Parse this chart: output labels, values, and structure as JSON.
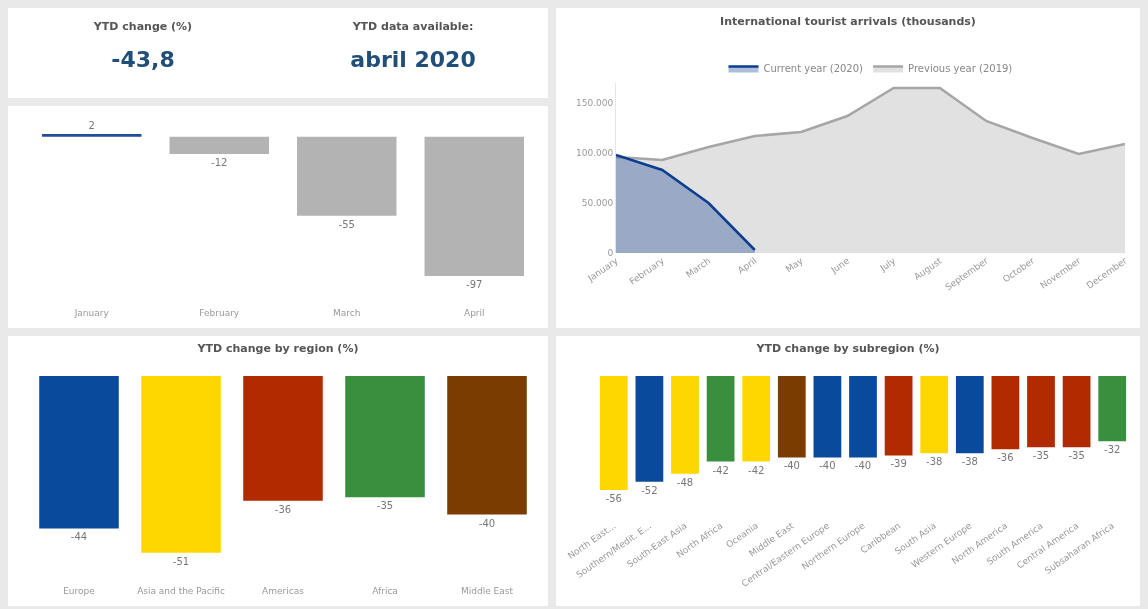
{
  "chart_data": [
    {
      "type": "other",
      "title": "YTD change (%)",
      "annotations": [
        "-43,8"
      ]
    },
    {
      "type": "other",
      "title": "YTD data available:",
      "annotations": [
        "abril 2020"
      ]
    },
    {
      "type": "bar",
      "categories": [
        "January",
        "February",
        "March",
        "April"
      ],
      "values": [
        2,
        -12,
        -55,
        -97
      ],
      "colors": [
        "#1f4e9c",
        "#b3b3b3",
        "#b3b3b3",
        "#b3b3b3"
      ],
      "data_labels": true
    },
    {
      "type": "area",
      "title": "International tourist arrivals (thousands)",
      "categories": [
        "January",
        "February",
        "March",
        "April",
        "May",
        "June",
        "July",
        "August",
        "September",
        "October",
        "November",
        "December"
      ],
      "series": [
        {
          "name": "Current year (2020)",
          "color": "#0b3d91",
          "values": [
            98000,
            83000,
            50000,
            3000,
            null,
            null,
            null,
            null,
            null,
            null,
            null,
            null
          ]
        },
        {
          "name": "Previous year (2019)",
          "color": "#a6a6a6",
          "values": [
            96000,
            93000,
            106000,
            117000,
            121000,
            137000,
            165000,
            165000,
            132000,
            115000,
            99000,
            109000
          ]
        }
      ],
      "ylim": [
        0,
        170000
      ],
      "yticks": [
        0,
        {
          "value": 50000,
          "label": "50.000"
        },
        {
          "value": 100000,
          "label": "100.000"
        },
        {
          "value": 150000,
          "label": "150.000"
        }
      ],
      "legend": "top"
    },
    {
      "type": "bar",
      "title": "YTD change by region (%)",
      "categories": [
        "Europe",
        "Asia and the Pacific",
        "Americas",
        "Africa",
        "Middle East"
      ],
      "values": [
        -44,
        -51,
        -36,
        -35,
        -40
      ],
      "colors": [
        "#0a4a9c",
        "#ffd700",
        "#b22a00",
        "#3a8f3f",
        "#7a3c00"
      ],
      "data_labels": true
    },
    {
      "type": "bar",
      "title": "YTD change by subregion (%)",
      "categories": [
        "North East...",
        "Southern/Medit. E...",
        "South-East Asia",
        "North Africa",
        "Oceania",
        "Middle East",
        "Central/Eastern Europe",
        "Northern Europe",
        "Caribbean",
        "South Asia",
        "Western Europe",
        "North America",
        "South America",
        "Central America",
        "Subsaharan Africa"
      ],
      "values": [
        -56,
        -52,
        -48,
        -42,
        -42,
        -40,
        -40,
        -40,
        -39,
        -38,
        -38,
        -36,
        -35,
        -35,
        -32
      ],
      "colors": [
        "#ffd700",
        "#0a4a9c",
        "#ffd700",
        "#3a8f3f",
        "#ffd700",
        "#7a3c00",
        "#0a4a9c",
        "#0a4a9c",
        "#b22a00",
        "#ffd700",
        "#0a4a9c",
        "#b22a00",
        "#b22a00",
        "#b22a00",
        "#3a8f3f"
      ],
      "data_labels": true
    }
  ]
}
